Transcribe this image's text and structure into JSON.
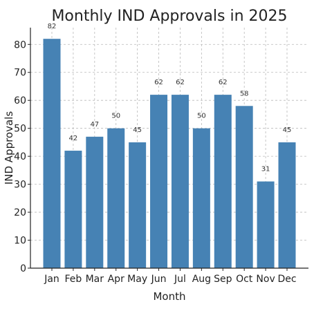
{
  "chart_data": {
    "type": "bar",
    "title": "Monthly IND Approvals in 2025",
    "xlabel": "Month",
    "ylabel": "IND Approvals",
    "categories": [
      "Jan",
      "Feb",
      "Mar",
      "Apr",
      "May",
      "Jun",
      "Jul",
      "Aug",
      "Sep",
      "Oct",
      "Nov",
      "Dec"
    ],
    "values": [
      82,
      42,
      47,
      50,
      45,
      62,
      62,
      50,
      62,
      58,
      31,
      45
    ],
    "ylim": [
      0,
      86
    ],
    "yticks": [
      0,
      10,
      20,
      30,
      40,
      50,
      60,
      70,
      80
    ],
    "grid": true,
    "bar_color": "#4682b4"
  }
}
